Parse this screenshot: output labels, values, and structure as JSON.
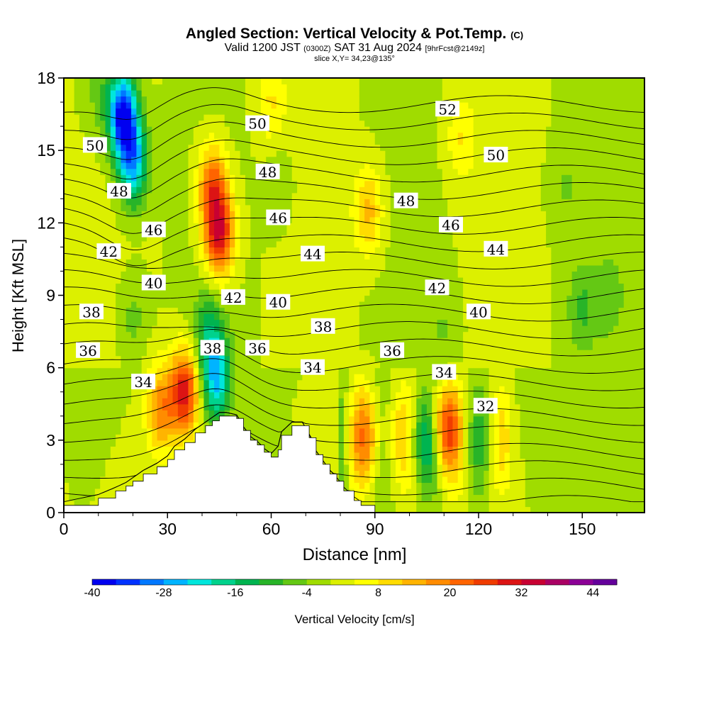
{
  "header": {
    "title": "Angled Section: Vertical Velocity & Pot.Temp.",
    "title_suffix": "(C)",
    "valid_prefix": "Valid 1200 JST",
    "valid_z": "(0300Z)",
    "valid_date": "SAT 31 Aug 2024",
    "valid_fcst": "[9hrFcst@2149z]",
    "slice": "slice X,Y= 34,23@135°"
  },
  "chart_data": {
    "type": "heatmap",
    "xlabel": "Distance [nm]",
    "ylabel": "Height [Kft MSL]",
    "xlim": [
      0,
      168
    ],
    "ylim": [
      0,
      18
    ],
    "xticks": [
      0,
      30,
      60,
      90,
      120,
      150
    ],
    "yticks": [
      0,
      3,
      6,
      9,
      12,
      15,
      18
    ],
    "colorbar": {
      "label": "Vertical Velocity [cm/s]",
      "min": -40,
      "max": 48,
      "step": 4,
      "tick_values": [
        -40,
        -28,
        -16,
        -4,
        8,
        20,
        32,
        44
      ],
      "tick_labels": [
        "-40",
        "-28",
        "-16",
        "-4",
        "8",
        "20",
        "32",
        "44"
      ],
      "colors": [
        "#0000f0",
        "#0032ff",
        "#0078ff",
        "#00b4ff",
        "#00e6dc",
        "#00d28c",
        "#00b450",
        "#28b428",
        "#64c814",
        "#a0dc00",
        "#dcf000",
        "#ffff00",
        "#ffdc00",
        "#ffb400",
        "#ff8c00",
        "#ff6400",
        "#f03c00",
        "#dc1414",
        "#c80032",
        "#aa0064",
        "#8c0096",
        "#64009b"
      ]
    },
    "velocity_features": [
      {
        "x": 17,
        "y": 16.5,
        "value": -38
      },
      {
        "x": 20,
        "y": 14.5,
        "value": -26
      },
      {
        "x": 45,
        "y": 11.5,
        "value": 30
      },
      {
        "x": 43,
        "y": 13.5,
        "value": 22
      },
      {
        "x": 35,
        "y": 5.0,
        "value": 30
      },
      {
        "x": 28,
        "y": 4.3,
        "value": 18
      },
      {
        "x": 44,
        "y": 5.5,
        "value": -24
      },
      {
        "x": 42,
        "y": 7.5,
        "value": -12
      },
      {
        "x": 88,
        "y": 12.5,
        "value": 14
      },
      {
        "x": 104,
        "y": 3.0,
        "value": -12
      },
      {
        "x": 110,
        "y": 3.5,
        "value": 22
      },
      {
        "x": 88,
        "y": 3.2,
        "value": 14
      },
      {
        "x": 95,
        "y": 3.2,
        "value": 8
      },
      {
        "x": 150,
        "y": 8.5,
        "value": -8
      },
      {
        "x": 158,
        "y": 9.0,
        "value": -6
      },
      {
        "x": 110,
        "y": 7.5,
        "value": -4
      },
      {
        "x": 10,
        "y": 17.5,
        "value": -6
      },
      {
        "x": 60,
        "y": 17.0,
        "value": 8
      },
      {
        "x": 115,
        "y": 15.5,
        "value": 8
      },
      {
        "x": 145,
        "y": 13.5,
        "value": -4
      },
      {
        "x": 20,
        "y": 8.0,
        "value": -6
      },
      {
        "x": 62,
        "y": 13.5,
        "value": -4
      }
    ],
    "terrain": {
      "x": [
        0,
        10,
        15,
        18,
        20,
        23,
        27,
        30,
        32,
        35,
        38,
        41,
        43,
        45,
        47,
        50,
        52,
        54,
        56,
        58,
        60,
        62,
        63,
        66,
        69,
        71,
        73,
        75,
        77,
        79,
        81,
        84,
        86,
        90
      ],
      "height": [
        0.3,
        0.6,
        0.9,
        1.1,
        1.3,
        1.6,
        1.9,
        2.2,
        2.6,
        2.9,
        3.3,
        3.6,
        3.8,
        4.0,
        4.0,
        3.9,
        3.4,
        3.0,
        2.8,
        2.5,
        2.3,
        2.6,
        3.2,
        3.6,
        3.6,
        3.1,
        2.4,
        2.0,
        1.6,
        1.3,
        0.9,
        0.5,
        0.3,
        0.3
      ]
    },
    "theta_levels": [
      30,
      31,
      32,
      33,
      34,
      35,
      36,
      37,
      38,
      39,
      40,
      41,
      42,
      43,
      44,
      45,
      46,
      47,
      48,
      49,
      50,
      51,
      52,
      53
    ],
    "theta_contour_labels": [
      {
        "text": "52",
        "x": 111,
        "y": 16.7
      },
      {
        "text": "50",
        "x": 9,
        "y": 15.2
      },
      {
        "text": "50",
        "x": 56,
        "y": 16.1
      },
      {
        "text": "50",
        "x": 125,
        "y": 14.8
      },
      {
        "text": "48",
        "x": 16,
        "y": 13.3
      },
      {
        "text": "48",
        "x": 59,
        "y": 14.1
      },
      {
        "text": "48",
        "x": 99,
        "y": 12.9
      },
      {
        "text": "46",
        "x": 26,
        "y": 11.7
      },
      {
        "text": "46",
        "x": 62,
        "y": 12.2
      },
      {
        "text": "46",
        "x": 112,
        "y": 11.9
      },
      {
        "text": "44",
        "x": 72,
        "y": 10.7
      },
      {
        "text": "44",
        "x": 125,
        "y": 10.9
      },
      {
        "text": "42",
        "x": 13,
        "y": 10.8
      },
      {
        "text": "42",
        "x": 49,
        "y": 8.9
      },
      {
        "text": "42",
        "x": 108,
        "y": 9.3
      },
      {
        "text": "40",
        "x": 26,
        "y": 9.5
      },
      {
        "text": "40",
        "x": 62,
        "y": 8.7
      },
      {
        "text": "40",
        "x": 120,
        "y": 8.3
      },
      {
        "text": "38",
        "x": 8,
        "y": 8.3
      },
      {
        "text": "38",
        "x": 43,
        "y": 6.8
      },
      {
        "text": "38",
        "x": 75,
        "y": 7.7
      },
      {
        "text": "36",
        "x": 7,
        "y": 6.7
      },
      {
        "text": "36",
        "x": 56,
        "y": 6.8
      },
      {
        "text": "36",
        "x": 95,
        "y": 6.7
      },
      {
        "text": "34",
        "x": 23,
        "y": 5.4
      },
      {
        "text": "34",
        "x": 72,
        "y": 6.0
      },
      {
        "text": "34",
        "x": 110,
        "y": 5.8
      },
      {
        "text": "32",
        "x": 122,
        "y": 4.4
      }
    ]
  }
}
